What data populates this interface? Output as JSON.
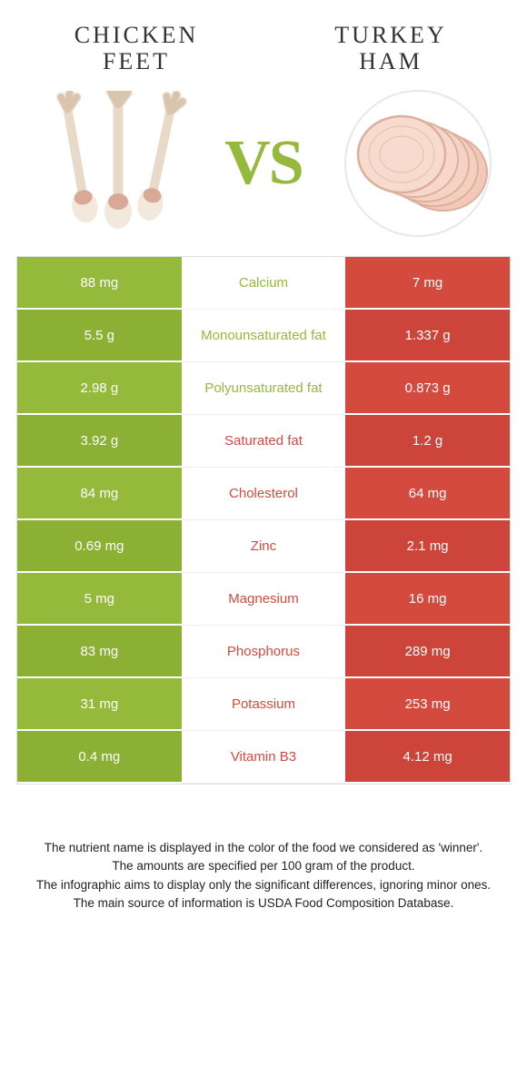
{
  "header": {
    "left_title_line1": "CHICKEN",
    "left_title_line2": "FEET",
    "right_title": "TURKEY HAM"
  },
  "vs": "VS",
  "colors": {
    "green": "#94b93b",
    "green_dark": "#8bb034",
    "red": "#d44a3f",
    "red_dark": "#cc443a",
    "nutrient_green": "#94b93b",
    "nutrient_red": "#d44a3f"
  },
  "rows": [
    {
      "left": "88 mg",
      "mid": "Calcium",
      "right": "7 mg",
      "winner": "left"
    },
    {
      "left": "5.5 g",
      "mid": "Monounsaturated fat",
      "right": "1.337 g",
      "winner": "left"
    },
    {
      "left": "2.98 g",
      "mid": "Polyunsaturated fat",
      "right": "0.873 g",
      "winner": "left"
    },
    {
      "left": "3.92 g",
      "mid": "Saturated fat",
      "right": "1.2 g",
      "winner": "right"
    },
    {
      "left": "84 mg",
      "mid": "Cholesterol",
      "right": "64 mg",
      "winner": "right"
    },
    {
      "left": "0.69 mg",
      "mid": "Zinc",
      "right": "2.1 mg",
      "winner": "right"
    },
    {
      "left": "5 mg",
      "mid": "Magnesium",
      "right": "16 mg",
      "winner": "right"
    },
    {
      "left": "83 mg",
      "mid": "Phosphorus",
      "right": "289 mg",
      "winner": "right"
    },
    {
      "left": "31 mg",
      "mid": "Potassium",
      "right": "253 mg",
      "winner": "right"
    },
    {
      "left": "0.4 mg",
      "mid": "Vitamin B3",
      "right": "4.12 mg",
      "winner": "right"
    }
  ],
  "footnote": {
    "line1": "The nutrient name is displayed in the color of the food we considered as 'winner'.",
    "line2": "The amounts are specified per 100 gram of the product.",
    "line3": "The infographic aims to display only the significant differences, ignoring minor ones.",
    "line4": "The main source of information is USDA Food Composition Database."
  }
}
